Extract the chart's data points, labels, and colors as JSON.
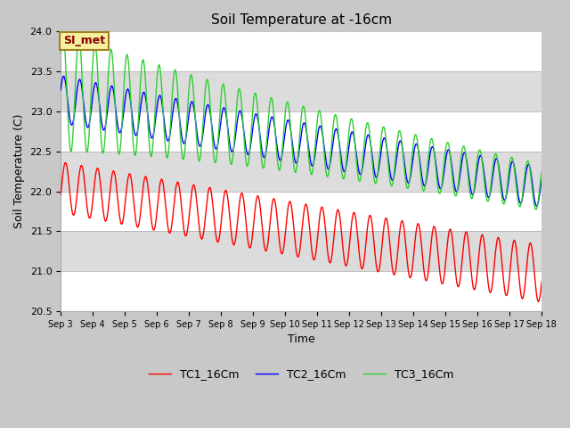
{
  "title": "Soil Temperature at -16cm",
  "xlabel": "Time",
  "ylabel": "Soil Temperature (C)",
  "ylim": [
    20.5,
    24.0
  ],
  "xlim": [
    0,
    15
  ],
  "fig_bg_color": "#c8c8c8",
  "plot_bg_color": "#ffffff",
  "band_color1": "#ffffff",
  "band_color2": "#dcdcdc",
  "annotation_text": "SI_met",
  "annotation_bg": "#f5f0a0",
  "annotation_border": "#a08020",
  "annotation_text_color": "#8b0000",
  "legend_labels": [
    "TC1_16Cm",
    "TC2_16Cm",
    "TC3_16Cm"
  ],
  "line_colors": [
    "red",
    "blue",
    "limegreen"
  ],
  "xtick_labels": [
    "Sep 3",
    "Sep 4",
    "Sep 5",
    "Sep 6",
    "Sep 7",
    "Sep 8",
    "Sep 9",
    "Sep 10",
    "Sep 11",
    "Sep 12",
    "Sep 13",
    "Sep 14",
    "Sep 15",
    "Sep 16",
    "Sep 17",
    "Sep 18"
  ],
  "ytick_labels": [
    "20.5",
    "21.0",
    "21.5",
    "22.0",
    "22.5",
    "23.0",
    "23.5",
    "24.0"
  ],
  "ytick_values": [
    20.5,
    21.0,
    21.5,
    22.0,
    22.5,
    23.0,
    23.5,
    24.0
  ]
}
